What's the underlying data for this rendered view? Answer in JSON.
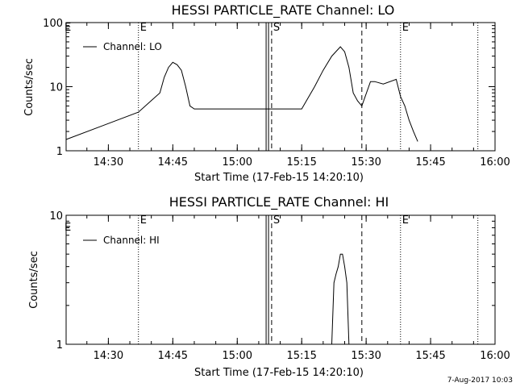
{
  "chart_data": [
    {
      "type": "line",
      "title": "HESSI PARTICLE_RATE Channel: LO",
      "xlabel": "Start Time (17-Feb-15 14:20:10)",
      "ylabel": "Counts/sec",
      "yscale": "log",
      "ylim": [
        1,
        100
      ],
      "xlim": [
        "14:20:10",
        "16:00:00"
      ],
      "xtick_labels": [
        "14:30",
        "14:45",
        "15:00",
        "15:15",
        "15:30",
        "15:45",
        "16:00"
      ],
      "ytick_labels": [
        "1",
        "10",
        "100"
      ],
      "legend": {
        "placement": "top-left",
        "entries": [
          "Channel: LO"
        ]
      },
      "markers": [
        {
          "time": "14:37",
          "style": "dotted",
          "label": "E"
        },
        {
          "time": "15:07",
          "style": "double-solid",
          "label": ""
        },
        {
          "time": "15:08",
          "style": "dashed",
          "label": "S"
        },
        {
          "time": "15:29",
          "style": "dashed",
          "label": ""
        },
        {
          "time": "15:38",
          "style": "dotted",
          "label": "E"
        },
        {
          "time": "15:56",
          "style": "dotted",
          "label": ""
        }
      ],
      "corner_label": "E",
      "series": [
        {
          "x": [
            "14:20:10",
            "14:37",
            "14:42",
            "14:43",
            "14:44",
            "14:45",
            "14:46",
            "14:47",
            "14:48",
            "14:49",
            "14:50",
            "14:55",
            "15:00",
            "15:05",
            "15:10",
            "15:15",
            "15:18",
            "15:20",
            "15:22",
            "15:24",
            "15:25",
            "15:26",
            "15:27",
            "15:28",
            "15:29",
            "15:31",
            "15:32",
            "15:34",
            "15:37",
            "15:38",
            "15:39",
            "15:40",
            "15:41",
            "15:42"
          ],
          "y": [
            1.5,
            4,
            8,
            14,
            20,
            24,
            22,
            18,
            10,
            5,
            4.5,
            4.5,
            4.5,
            4.5,
            4.5,
            4.5,
            10,
            18,
            30,
            42,
            35,
            20,
            8,
            6,
            5,
            12,
            12,
            11,
            13,
            7,
            5,
            3,
            2,
            1.4
          ]
        }
      ]
    },
    {
      "type": "line",
      "title": "HESSI PARTICLE_RATE Channel: HI",
      "xlabel": "Start Time (17-Feb-15 14:20:10)",
      "ylabel": "Counts/sec",
      "yscale": "log",
      "ylim": [
        1,
        10
      ],
      "xlim": [
        "14:20:10",
        "16:00:00"
      ],
      "xtick_labels": [
        "14:30",
        "14:45",
        "15:00",
        "15:15",
        "15:30",
        "15:45",
        "16:00"
      ],
      "ytick_labels": [
        "1",
        "10"
      ],
      "legend": {
        "placement": "top-left",
        "entries": [
          "Channel: HI"
        ]
      },
      "markers": [
        {
          "time": "14:37",
          "style": "dotted",
          "label": "E"
        },
        {
          "time": "15:07",
          "style": "double-solid",
          "label": ""
        },
        {
          "time": "15:08",
          "style": "dashed",
          "label": "S"
        },
        {
          "time": "15:29",
          "style": "dashed",
          "label": ""
        },
        {
          "time": "15:38",
          "style": "dotted",
          "label": "E"
        },
        {
          "time": "15:56",
          "style": "dotted",
          "label": ""
        }
      ],
      "corner_label": "E",
      "series": [
        {
          "x": [
            "15:22",
            "15:22:30",
            "15:23",
            "15:23:30",
            "15:24",
            "15:24:30",
            "15:25",
            "15:25:30",
            "15:26"
          ],
          "y": [
            1,
            3,
            3.5,
            4,
            5,
            5,
            4,
            3,
            1
          ]
        }
      ]
    }
  ],
  "footer": {
    "date_stamp": "7-Aug-2017 10:03"
  }
}
